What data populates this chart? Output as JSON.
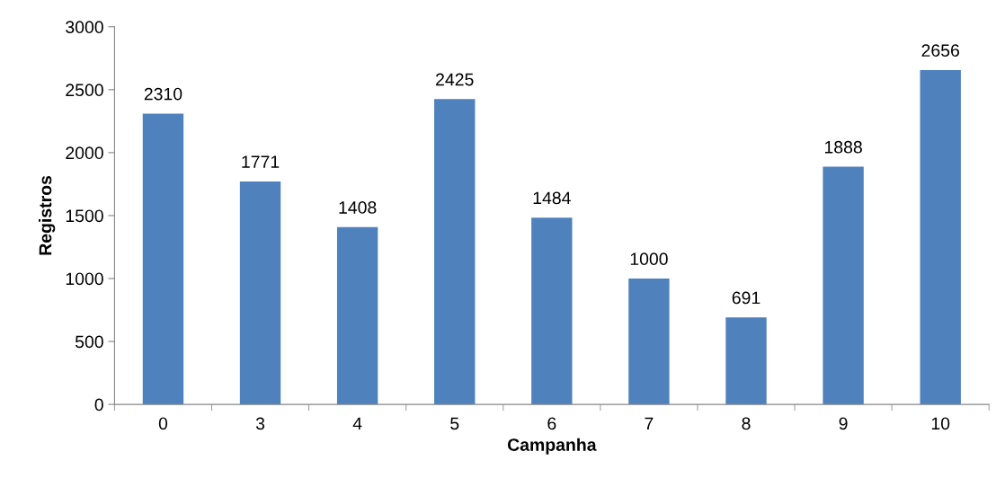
{
  "chart_data": {
    "type": "bar",
    "xlabel": "Campanha",
    "ylabel": "Registros",
    "categories": [
      "0",
      "3",
      "4",
      "5",
      "6",
      "7",
      "8",
      "9",
      "10"
    ],
    "values": [
      2310,
      1771,
      1408,
      2425,
      1484,
      1000,
      691,
      1888,
      2656
    ],
    "color": "#4f81bd",
    "ylim": [
      0,
      3000
    ],
    "yticks": [
      0,
      500,
      1000,
      1500,
      2000,
      2500,
      3000
    ],
    "data_labels": true,
    "grid": false,
    "legend": false
  }
}
